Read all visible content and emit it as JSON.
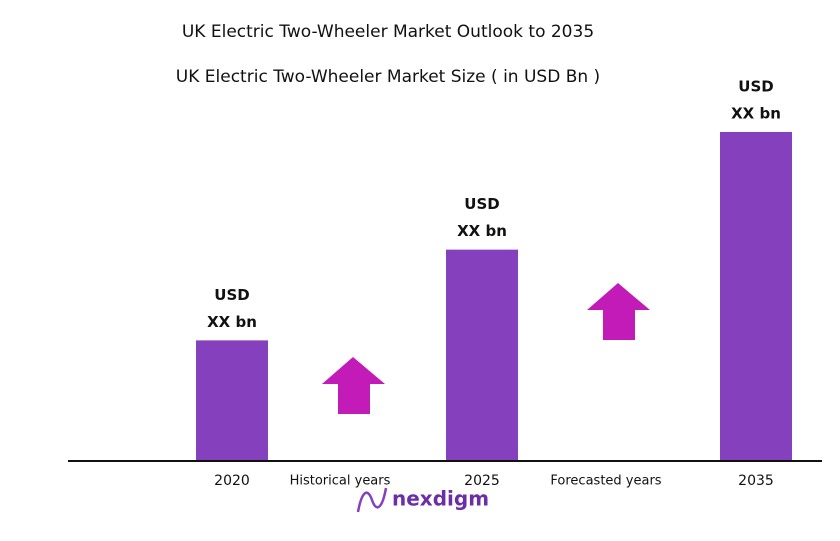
{
  "chart_data": {
    "type": "bar",
    "title": "UK Electric Two-Wheeler Market Outlook to 2035",
    "subtitle": "UK Electric Two-Wheeler Market Size ( in USD Bn )",
    "categories": [
      "2020",
      "2025",
      "2035"
    ],
    "values": [
      120,
      211,
      329
    ],
    "value_labels": [
      [
        "USD",
        "XX bn"
      ],
      [
        "USD",
        "XX bn"
      ],
      [
        "USD",
        "XX bn"
      ]
    ],
    "color": "#8540bd",
    "ylim": [
      0,
      329
    ],
    "annotations": [
      "Historical years",
      "Forecasted years"
    ]
  },
  "brand": "nexdigm"
}
